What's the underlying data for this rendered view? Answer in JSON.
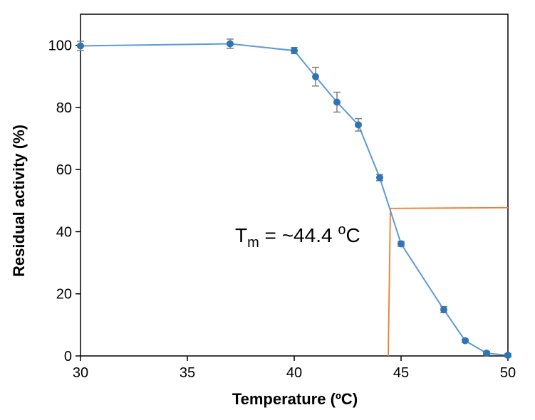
{
  "chart_data": {
    "type": "line",
    "title": "",
    "xlabel": "Temperature (ºC)",
    "ylabel": "Residual activity (%)",
    "xlim": [
      30,
      50
    ],
    "ylim": [
      0,
      110
    ],
    "xticks": [
      30,
      35,
      40,
      45,
      50
    ],
    "yticks": [
      0,
      20,
      40,
      60,
      80,
      100
    ],
    "grid": false,
    "legend": "none",
    "series": [
      {
        "x": [
          30,
          37,
          40,
          41,
          42,
          43,
          44,
          45,
          47,
          48,
          49,
          50
        ],
        "y": [
          99.8,
          100.5,
          98.3,
          89.9,
          81.7,
          74.4,
          57.4,
          36.1,
          14.9,
          4.9,
          0.9,
          0.2
        ],
        "error": [
          1.5,
          1.5,
          1.0,
          3.0,
          3.2,
          2.0,
          1.0,
          0.8,
          1.0,
          0.5,
          0.5,
          0.5
        ],
        "color": "#5b9bd5",
        "marker_color": "#2e75b6"
      }
    ],
    "reference_lines": {
      "color": "#ed7d31",
      "horizontal_y": 47.5,
      "vertical_x": 44.4
    },
    "annotation": {
      "T_main": "T",
      "T_subscript": "m",
      "value_text": " = ~44.4 ",
      "degree_superscript": "o",
      "unit": "C"
    },
    "colors": {
      "axis": "#000000",
      "errorbar": "#7f7f7f"
    }
  }
}
